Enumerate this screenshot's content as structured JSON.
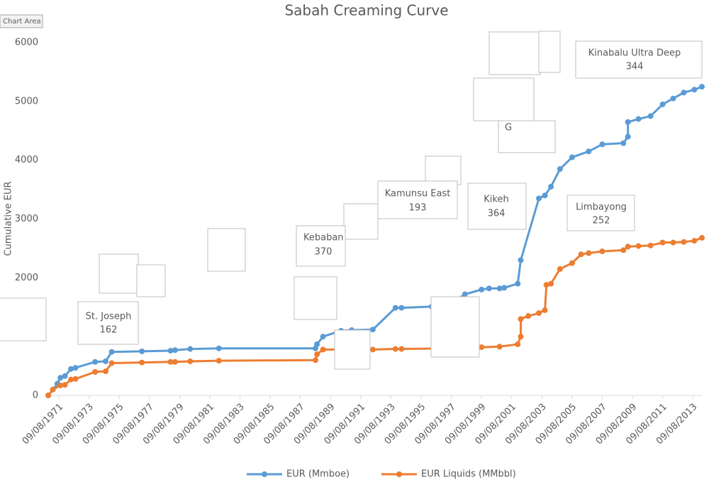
{
  "chart_data": {
    "type": "line",
    "title": "Sabah Creaming Curve",
    "tooltip": "Chart Area",
    "y_label": "Cumulative EUR",
    "xlim": [
      1970.9,
      2014.3
    ],
    "xticks": [
      {
        "value": 1971.7,
        "label": "09/08/1971"
      },
      {
        "value": 1973.7,
        "label": "09/08/1973"
      },
      {
        "value": 1975.7,
        "label": "09/08/1975"
      },
      {
        "value": 1977.7,
        "label": "09/08/1977"
      },
      {
        "value": 1979.7,
        "label": "09/08/1979"
      },
      {
        "value": 1981.7,
        "label": "09/08/1981"
      },
      {
        "value": 1983.7,
        "label": "09/08/1983"
      },
      {
        "value": 1985.7,
        "label": "09/08/1985"
      },
      {
        "value": 1987.7,
        "label": "09/08/1987"
      },
      {
        "value": 1989.7,
        "label": "09/08/1989"
      },
      {
        "value": 1991.7,
        "label": "09/08/1991"
      },
      {
        "value": 1993.7,
        "label": "09/08/1993"
      },
      {
        "value": 1995.7,
        "label": "09/08/1995"
      },
      {
        "value": 1997.7,
        "label": "09/08/1997"
      },
      {
        "value": 1999.7,
        "label": "09/08/1999"
      },
      {
        "value": 2001.7,
        "label": "09/08/2001"
      },
      {
        "value": 2003.7,
        "label": "09/08/2003"
      },
      {
        "value": 2005.7,
        "label": "09/08/2005"
      },
      {
        "value": 2007.7,
        "label": "09/08/2007"
      },
      {
        "value": 2009.7,
        "label": "09/08/2009"
      },
      {
        "value": 2011.7,
        "label": "09/08/2011"
      },
      {
        "value": 2013.7,
        "label": "09/08/2013"
      }
    ],
    "ylim": [
      0,
      6000
    ],
    "yticks": [
      0,
      1000,
      2000,
      3000,
      4000,
      5000,
      6000
    ],
    "series": [
      {
        "name": "EUR (Mmboe)",
        "color": "#5b9bd5",
        "x": [
          1971.0,
          1971.3,
          1971.6,
          1971.8,
          1972.1,
          1972.5,
          1972.8,
          1974.1,
          1974.8,
          1975.2,
          1977.2,
          1979.1,
          1979.4,
          1980.4,
          1982.3,
          1988.7,
          1988.8,
          1989.2,
          1990.4,
          1991.1,
          1992.5,
          1994.0,
          1994.4,
          1996.4,
          1997.9,
          1998.6,
          1999.7,
          2000.2,
          2000.9,
          2001.2,
          2002.1,
          2002.3,
          2003.5,
          2003.9,
          2004.3,
          2004.9,
          2005.7,
          2006.8,
          2007.7,
          2009.1,
          2009.4,
          2009.4,
          2010.1,
          2010.9,
          2011.7,
          2012.4,
          2013.1,
          2013.8,
          2014.3
        ],
        "values": [
          0,
          100,
          200,
          300,
          330,
          450,
          470,
          570,
          580,
          740,
          750,
          760,
          770,
          790,
          800,
          800,
          870,
          1000,
          1100,
          1110,
          1120,
          1490,
          1490,
          1510,
          1600,
          1720,
          1800,
          1820,
          1820,
          1830,
          1900,
          2300,
          3350,
          3400,
          3550,
          3850,
          4050,
          4150,
          4270,
          4290,
          4400,
          4650,
          4700,
          4750,
          4950,
          5050,
          5150,
          5200,
          5250
        ]
      },
      {
        "name": "EUR Liquids (MMbbl)",
        "color": "#ed7d31",
        "x": [
          1971.0,
          1971.3,
          1971.8,
          1972.1,
          1972.5,
          1972.8,
          1974.1,
          1974.8,
          1975.2,
          1977.2,
          1979.1,
          1979.4,
          1980.4,
          1982.3,
          1988.7,
          1988.8,
          1989.2,
          1992.5,
          1994.0,
          1994.4,
          1997.9,
          1999.7,
          2000.9,
          2002.1,
          2002.3,
          2002.3,
          2002.8,
          2003.5,
          2003.9,
          2004.0,
          2004.3,
          2004.9,
          2005.7,
          2006.3,
          2006.8,
          2007.7,
          2009.1,
          2009.4,
          2010.1,
          2010.9,
          2011.7,
          2012.4,
          2013.1,
          2013.8,
          2014.3
        ],
        "values": [
          0,
          100,
          170,
          180,
          270,
          280,
          400,
          410,
          550,
          560,
          570,
          570,
          580,
          590,
          600,
          700,
          780,
          780,
          790,
          790,
          800,
          820,
          830,
          870,
          1000,
          1300,
          1350,
          1400,
          1450,
          1880,
          1900,
          2150,
          2250,
          2400,
          2420,
          2450,
          2470,
          2530,
          2540,
          2550,
          2600,
          2600,
          2610,
          2630,
          2680
        ]
      }
    ],
    "annotations": [
      {
        "label": "St. Joseph",
        "value": 162
      },
      {
        "label": "Kebaban",
        "value": 370
      },
      {
        "label": "Kamunsu East",
        "value": 193
      },
      {
        "label": "Kikeh",
        "value": 364
      },
      {
        "label": "Limbayong",
        "value": 252
      },
      {
        "label": "Kinabalu Ultra Deep",
        "value": 344
      },
      {
        "label": "G"
      }
    ]
  }
}
